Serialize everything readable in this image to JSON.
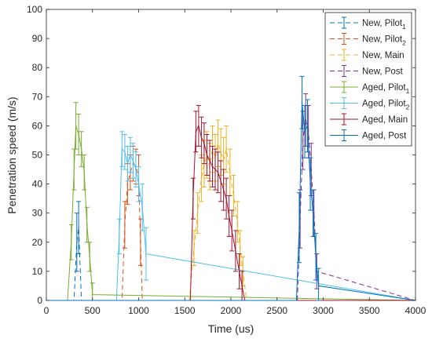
{
  "chart_data": {
    "type": "line",
    "title": "",
    "xlabel": "Time (us)",
    "ylabel": "Penetration speed (m/s)",
    "xlim": [
      0,
      4000
    ],
    "ylim": [
      0,
      100
    ],
    "xticks": [
      0,
      500,
      1000,
      1500,
      2000,
      2500,
      3000,
      3500,
      4000
    ],
    "yticks": [
      0,
      10,
      20,
      30,
      40,
      50,
      60,
      70,
      80,
      90,
      100
    ],
    "grid": false,
    "legend_position": "top-right",
    "series": [
      {
        "name": "New, Pilot",
        "sub": "1",
        "color": "#0072BD",
        "dash": true,
        "x": [
          0,
          300,
          330,
          350,
          380,
          4000
        ],
        "y": [
          0,
          0,
          20,
          25,
          0,
          0
        ],
        "err": [
          0,
          0,
          10,
          9,
          0,
          0
        ]
      },
      {
        "name": "New, Pilot",
        "sub": "2",
        "color": "#D95319",
        "dash": true,
        "x": [
          0,
          820,
          850,
          880,
          910,
          940,
          970,
          1000,
          1020,
          1040,
          4000
        ],
        "y": [
          0,
          0,
          26,
          40,
          44,
          47,
          46,
          43,
          20,
          0,
          0
        ],
        "err": [
          0,
          0,
          8,
          7,
          6,
          6,
          6,
          7,
          8,
          0,
          0
        ]
      },
      {
        "name": "New, Main",
        "sub": "",
        "color": "#EDB120",
        "dash": true,
        "x": [
          0,
          1550,
          1600,
          1640,
          1680,
          1710,
          1740,
          1770,
          1800,
          1830,
          1860,
          1890,
          1920,
          1950,
          1990,
          2030,
          2070,
          2100,
          2130,
          2170,
          4000
        ],
        "y": [
          0,
          0,
          18,
          30,
          42,
          47,
          50,
          46,
          52,
          49,
          54,
          51,
          48,
          52,
          44,
          36,
          27,
          18,
          10,
          0,
          0
        ],
        "err": [
          0,
          0,
          6,
          7,
          8,
          8,
          8,
          8,
          8,
          8,
          8,
          8,
          8,
          8,
          8,
          7,
          7,
          6,
          5,
          0,
          0
        ]
      },
      {
        "name": "New, Post",
        "sub": "",
        "color": "#7E2F8E",
        "dash": true,
        "x": [
          0,
          2720,
          2750,
          2780,
          2810,
          2840,
          2870,
          2900,
          2930,
          4000
        ],
        "y": [
          0,
          0,
          28,
          55,
          62,
          58,
          45,
          30,
          10,
          0
        ],
        "err": [
          0,
          0,
          10,
          10,
          9,
          9,
          9,
          8,
          6,
          0
        ]
      },
      {
        "name": "Aged, Pilot",
        "sub": "1",
        "color": "#77AC30",
        "dash": false,
        "x": [
          0,
          230,
          270,
          300,
          320,
          350,
          380,
          410,
          440,
          470,
          500,
          4000
        ],
        "y": [
          0,
          0,
          20,
          45,
          60,
          57,
          52,
          44,
          26,
          15,
          2,
          0
        ],
        "err": [
          0,
          0,
          6,
          7,
          8,
          7,
          6,
          6,
          6,
          5,
          4,
          0
        ]
      },
      {
        "name": "Aged, Pilot",
        "sub": "2",
        "color": "#4DBEEE",
        "dash": false,
        "x": [
          0,
          760,
          790,
          820,
          850,
          880,
          910,
          940,
          970,
          1000,
          1040,
          1080,
          4000
        ],
        "y": [
          0,
          0,
          22,
          52,
          51,
          47,
          50,
          48,
          45,
          40,
          32,
          16,
          0
        ],
        "err": [
          0,
          0,
          6,
          6,
          6,
          6,
          6,
          6,
          6,
          6,
          8,
          9,
          0
        ]
      },
      {
        "name": "Aged, Main",
        "sub": "",
        "color": "#A2142F",
        "dash": false,
        "x": [
          0,
          1560,
          1590,
          1620,
          1650,
          1680,
          1710,
          1740,
          1770,
          1800,
          1830,
          1860,
          1890,
          1920,
          1950,
          1980,
          2010,
          2050,
          2090,
          2120,
          2150,
          4000
        ],
        "y": [
          0,
          0,
          35,
          58,
          60,
          56,
          54,
          50,
          48,
          46,
          45,
          44,
          41,
          38,
          35,
          29,
          24,
          17,
          10,
          5,
          0,
          0
        ],
        "err": [
          0,
          0,
          7,
          7,
          7,
          7,
          7,
          7,
          7,
          7,
          7,
          7,
          7,
          7,
          7,
          7,
          7,
          7,
          6,
          5,
          0,
          0
        ]
      },
      {
        "name": "Aged, Post",
        "sub": "",
        "color": "#0072BD",
        "dash": false,
        "x": [
          0,
          2710,
          2740,
          2770,
          2800,
          2830,
          2860,
          2890,
          2920,
          2950,
          4000
        ],
        "y": [
          0,
          0,
          25,
          68,
          58,
          60,
          40,
          30,
          15,
          5,
          0
        ],
        "err": [
          0,
          0,
          12,
          9,
          9,
          9,
          9,
          8,
          8,
          6,
          0
        ]
      }
    ]
  }
}
